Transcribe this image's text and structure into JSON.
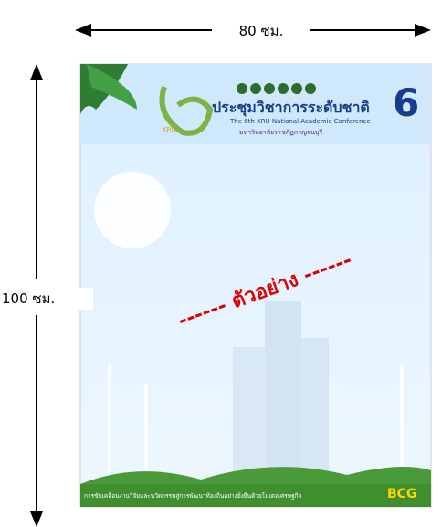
{
  "dimensions": {
    "width_label": "80 ซม.",
    "height_label": "100 ซม."
  },
  "poster": {
    "title": "ประชุมวิชาการระดับชาติ",
    "edition": "6",
    "subtitle": "The 6th KRU National Academic Conference",
    "university": "มหาวิทยาลัยราชภัฏกาญจนบุรี",
    "logo_text": "KRU",
    "watermark": "------ ตัวอย่าง ------",
    "footer": "การขับเคลื่อนงานวิจัยและนวัตกรรมสู่การพัฒนาท้องถิ่นอย่างยั่งยืนด้วยโมเดลเศรษฐกิจ",
    "footer_badge": "BCG"
  }
}
